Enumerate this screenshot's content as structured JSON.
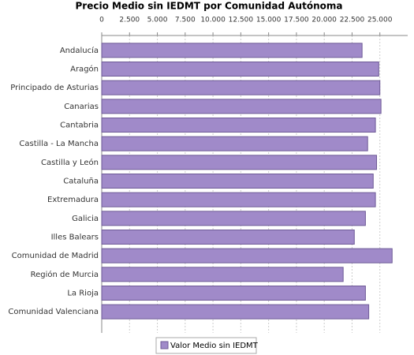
{
  "chart_data": {
    "type": "hbar",
    "title": "Precio Medio sin IEDMT por Comunidad Autónoma",
    "categories": [
      "Andalucía",
      "Aragón",
      "Principado de Asturias",
      "Canarias",
      "Cantabria",
      "Castilla - La Mancha",
      "Castilla y León",
      "Cataluña",
      "Extremadura",
      "Galicia",
      "Illes Balears",
      "Comunidad de Madrid",
      "Región de Murcia",
      "La Rioja",
      "Comunidad Valenciana"
    ],
    "series": [
      {
        "name": "Valor Medio sin IEDMT",
        "color": "#a08ac9",
        "values": [
          23400,
          24900,
          25000,
          25100,
          24600,
          23900,
          24700,
          24400,
          24600,
          23700,
          22700,
          26100,
          21700,
          23700,
          24000
        ]
      }
    ],
    "xlim": [
      0,
      27500
    ],
    "xticks": [
      0,
      {
        "value": 2500,
        "label": "2.500"
      },
      {
        "value": 5000,
        "label": "5.000"
      },
      {
        "value": 7500,
        "label": "7.500"
      },
      {
        "value": 10000,
        "label": "10.000"
      },
      {
        "value": 12500,
        "label": "12.500"
      },
      {
        "value": 15000,
        "label": "15.000"
      },
      {
        "value": 17500,
        "label": "17.500"
      },
      {
        "value": 20000,
        "label": "20.000"
      },
      {
        "value": 22500,
        "label": "22.500"
      },
      {
        "value": 25000,
        "label": "25.000"
      }
    ],
    "grid": true,
    "legend": "bottom"
  }
}
